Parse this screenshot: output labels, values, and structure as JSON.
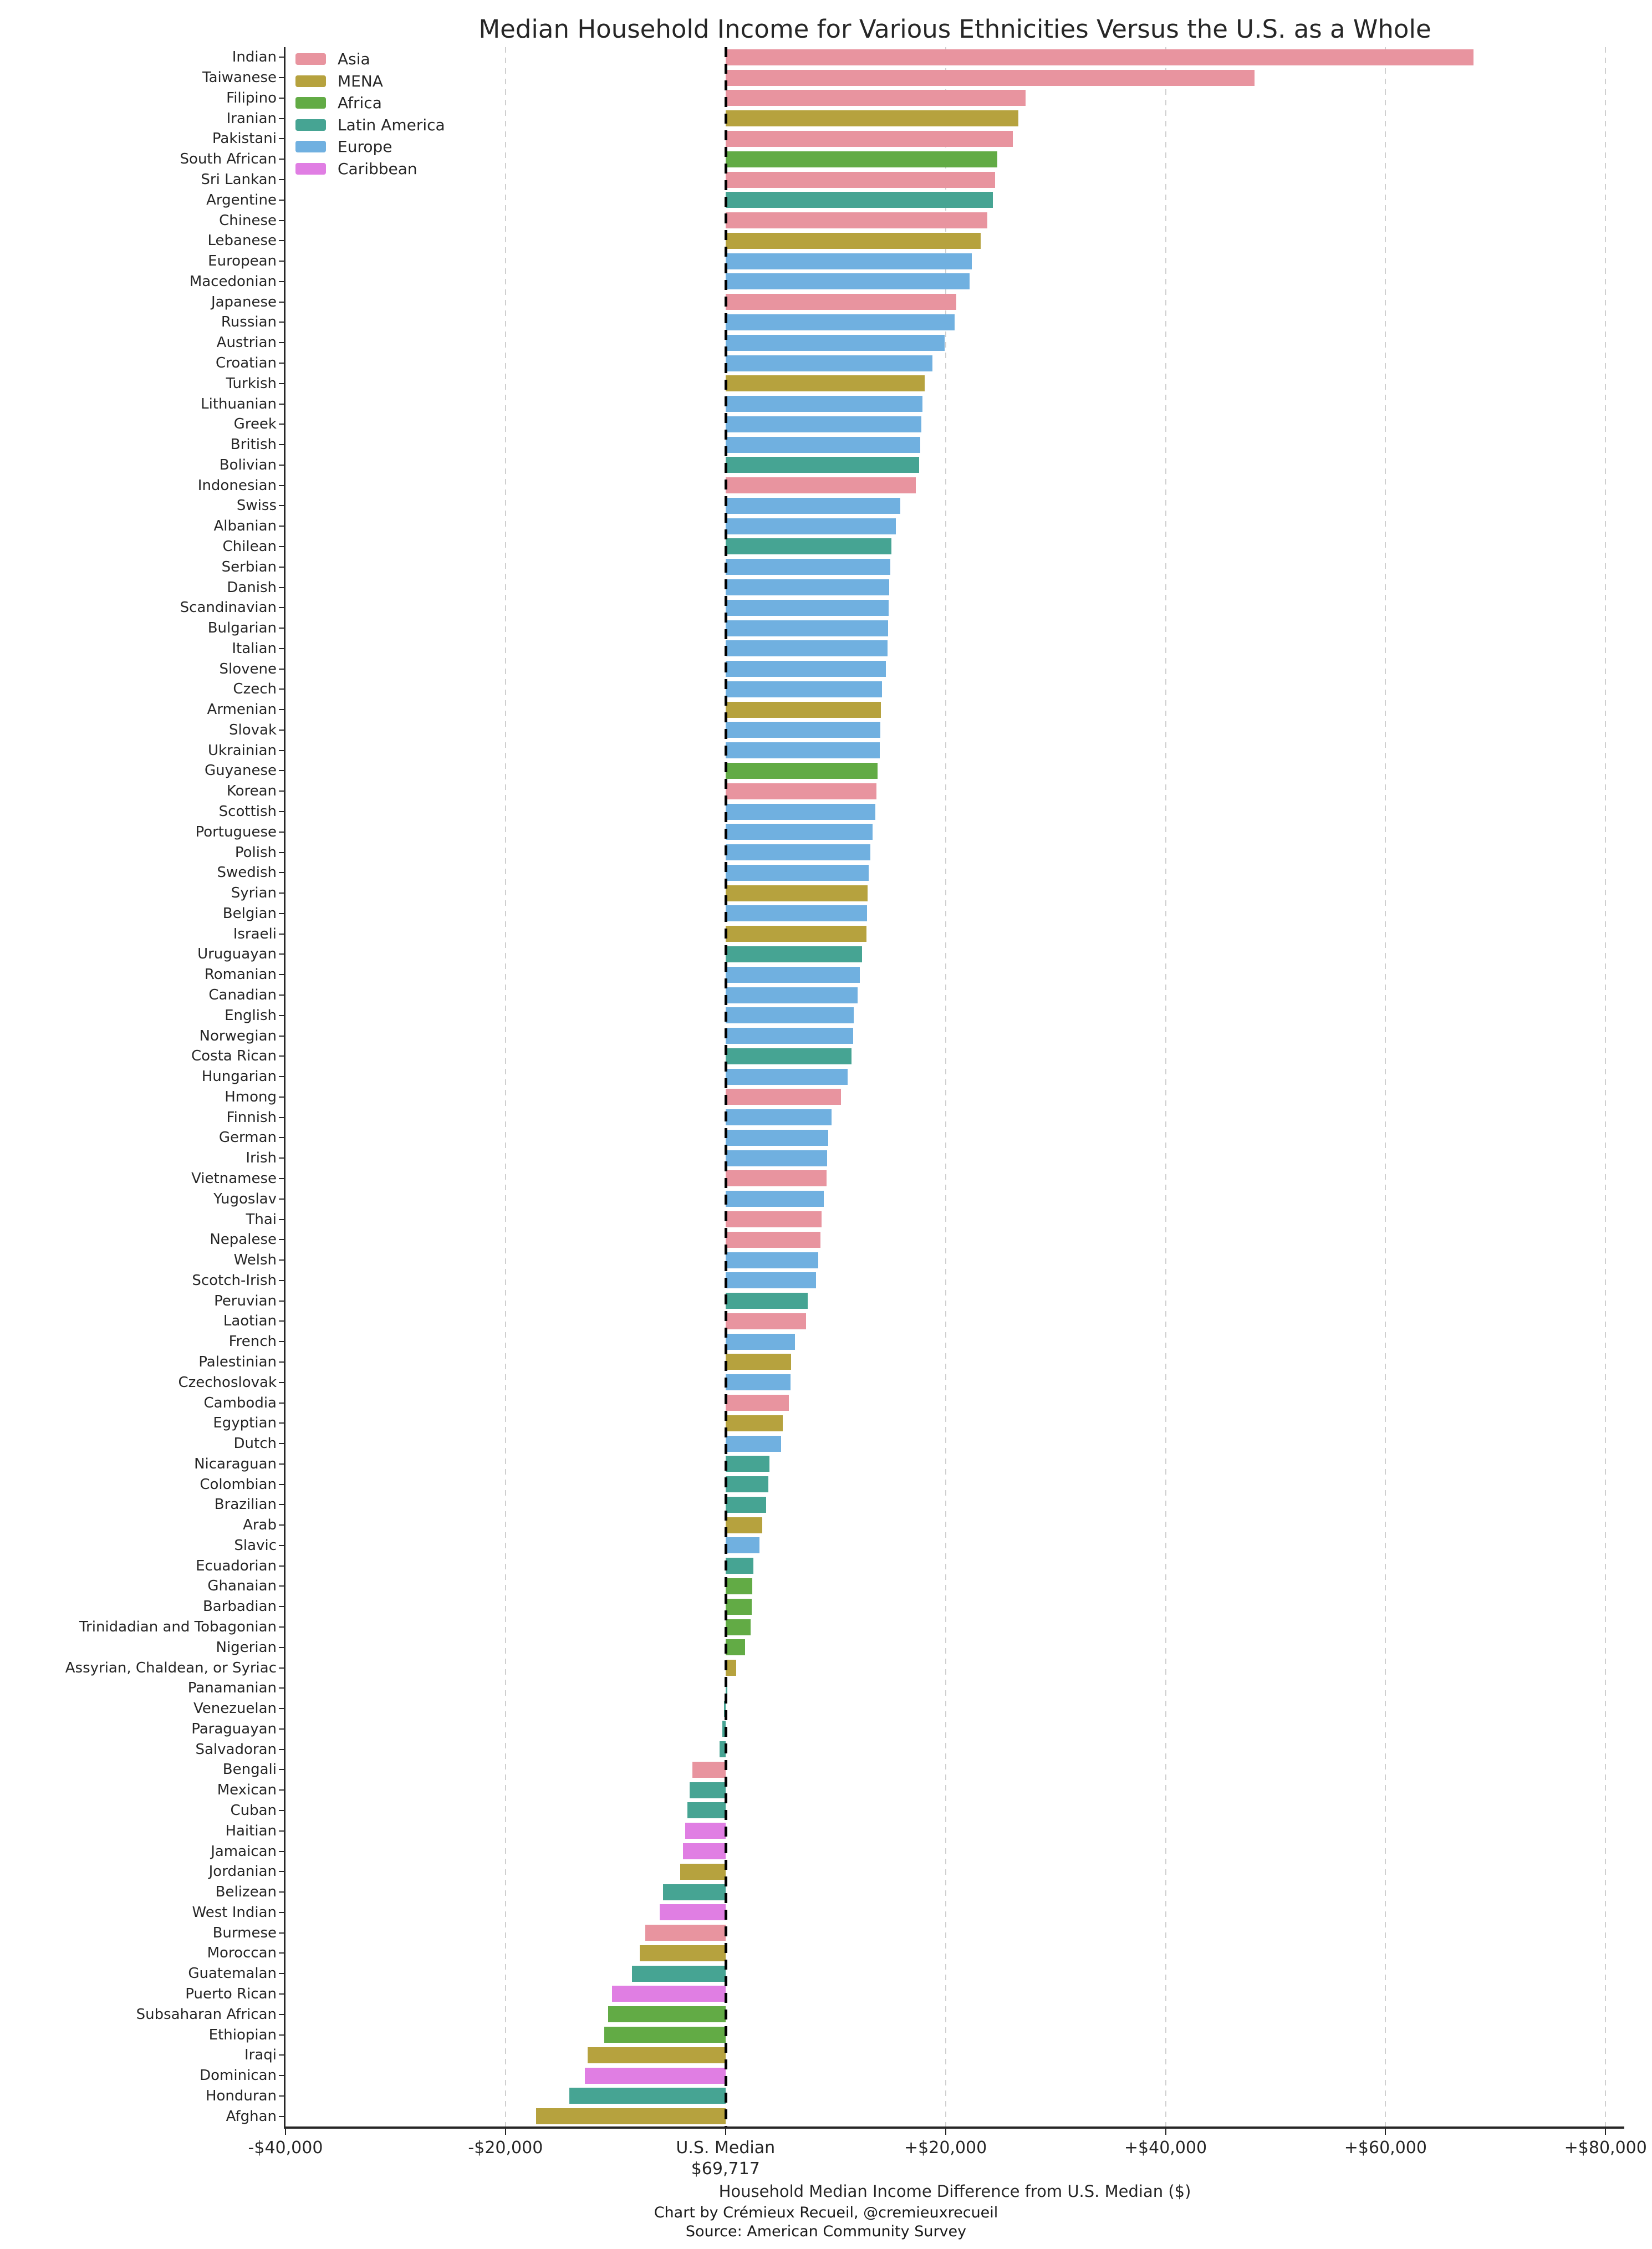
{
  "title": "Median Household Income for Various Ethnicities Versus the U.S. as a Whole",
  "footer": {
    "credit": "Chart by Crémieux Recueil, @cremieuxrecueil",
    "source": "Source: American Community Survey"
  },
  "axis": {
    "xlabel": "Household Median Income Difference from U.S. Median ($)",
    "xlim": [
      -40000,
      81700
    ],
    "xticks": [
      {
        "value": -40000,
        "label": "-$40,000"
      },
      {
        "value": -20000,
        "label": "-$20,000"
      },
      {
        "value": 0,
        "label": "U.S. Median\n$69,717"
      },
      {
        "value": 20000,
        "label": "+$20,000"
      },
      {
        "value": 40000,
        "label": "+$40,000"
      },
      {
        "value": 60000,
        "label": "+$60,000"
      },
      {
        "value": 80000,
        "label": "+$80,000"
      }
    ]
  },
  "legend": {
    "items": [
      {
        "label": "Asia",
        "color": "#e8949f"
      },
      {
        "label": "MENA",
        "color": "#b6a23e"
      },
      {
        "label": "Africa",
        "color": "#62ab45"
      },
      {
        "label": "Latin America",
        "color": "#46a493"
      },
      {
        "label": "Europe",
        "color": "#70b0e0"
      },
      {
        "label": "Caribbean",
        "color": "#e07ee3"
      }
    ]
  },
  "chart_data": {
    "type": "bar",
    "orientation": "horizontal",
    "title": "Median Household Income for Various Ethnicities Versus the U.S. as a Whole",
    "xlabel": "Household Median Income Difference from U.S. Median ($)",
    "xlim": [
      -40000,
      81700
    ],
    "grid": "vertical dashed every $20,000",
    "legend_position": "upper left",
    "baseline": {
      "label": "U.S. Median",
      "value_dollars": 69717
    },
    "region_colors": {
      "Asia": "#e8949f",
      "MENA": "#b6a23e",
      "Africa": "#62ab45",
      "Latin America": "#46a493",
      "Europe": "#70b0e0",
      "Caribbean": "#e07ee3"
    },
    "series": [
      {
        "name": "Indian",
        "region": "Asia",
        "value": 68000
      },
      {
        "name": "Taiwanese",
        "region": "Asia",
        "value": 48100
      },
      {
        "name": "Filipino",
        "region": "Asia",
        "value": 27300
      },
      {
        "name": "Iranian",
        "region": "MENA",
        "value": 26600
      },
      {
        "name": "Pakistani",
        "region": "Asia",
        "value": 26100
      },
      {
        "name": "South African",
        "region": "Africa",
        "value": 24700
      },
      {
        "name": "Sri Lankan",
        "region": "Asia",
        "value": 24500
      },
      {
        "name": "Argentine",
        "region": "Latin America",
        "value": 24300
      },
      {
        "name": "Chinese",
        "region": "Asia",
        "value": 23800
      },
      {
        "name": "Lebanese",
        "region": "MENA",
        "value": 23200
      },
      {
        "name": "European",
        "region": "Europe",
        "value": 22400
      },
      {
        "name": "Macedonian",
        "region": "Europe",
        "value": 22200
      },
      {
        "name": "Japanese",
        "region": "Asia",
        "value": 21000
      },
      {
        "name": "Russian",
        "region": "Europe",
        "value": 20800
      },
      {
        "name": "Austrian",
        "region": "Europe",
        "value": 19900
      },
      {
        "name": "Croatian",
        "region": "Europe",
        "value": 18800
      },
      {
        "name": "Turkish",
        "region": "MENA",
        "value": 18100
      },
      {
        "name": "Lithuanian",
        "region": "Europe",
        "value": 17900
      },
      {
        "name": "Greek",
        "region": "Europe",
        "value": 17800
      },
      {
        "name": "British",
        "region": "Europe",
        "value": 17700
      },
      {
        "name": "Bolivian",
        "region": "Latin America",
        "value": 17600
      },
      {
        "name": "Indonesian",
        "region": "Asia",
        "value": 17300
      },
      {
        "name": "Swiss",
        "region": "Europe",
        "value": 15900
      },
      {
        "name": "Albanian",
        "region": "Europe",
        "value": 15500
      },
      {
        "name": "Chilean",
        "region": "Latin America",
        "value": 15100
      },
      {
        "name": "Serbian",
        "region": "Europe",
        "value": 15000
      },
      {
        "name": "Danish",
        "region": "Europe",
        "value": 14900
      },
      {
        "name": "Scandinavian",
        "region": "Europe",
        "value": 14850
      },
      {
        "name": "Bulgarian",
        "region": "Europe",
        "value": 14800
      },
      {
        "name": "Italian",
        "region": "Europe",
        "value": 14750
      },
      {
        "name": "Slovene",
        "region": "Europe",
        "value": 14600
      },
      {
        "name": "Czech",
        "region": "Europe",
        "value": 14200
      },
      {
        "name": "Armenian",
        "region": "MENA",
        "value": 14100
      },
      {
        "name": "Slovak",
        "region": "Europe",
        "value": 14050
      },
      {
        "name": "Ukrainian",
        "region": "Europe",
        "value": 14000
      },
      {
        "name": "Guyanese",
        "region": "Africa",
        "value": 13800
      },
      {
        "name": "Korean",
        "region": "Asia",
        "value": 13700
      },
      {
        "name": "Scottish",
        "region": "Europe",
        "value": 13600
      },
      {
        "name": "Portuguese",
        "region": "Europe",
        "value": 13350
      },
      {
        "name": "Polish",
        "region": "Europe",
        "value": 13150
      },
      {
        "name": "Swedish",
        "region": "Europe",
        "value": 13000
      },
      {
        "name": "Syrian",
        "region": "MENA",
        "value": 12900
      },
      {
        "name": "Belgian",
        "region": "Europe",
        "value": 12850
      },
      {
        "name": "Israeli",
        "region": "MENA",
        "value": 12800
      },
      {
        "name": "Uruguayan",
        "region": "Latin America",
        "value": 12400
      },
      {
        "name": "Romanian",
        "region": "Europe",
        "value": 12200
      },
      {
        "name": "Canadian",
        "region": "Europe",
        "value": 12000
      },
      {
        "name": "English",
        "region": "Europe",
        "value": 11650
      },
      {
        "name": "Norwegian",
        "region": "Europe",
        "value": 11600
      },
      {
        "name": "Costa Rican",
        "region": "Latin America",
        "value": 11450
      },
      {
        "name": "Hungarian",
        "region": "Europe",
        "value": 11100
      },
      {
        "name": "Hmong",
        "region": "Asia",
        "value": 10500
      },
      {
        "name": "Finnish",
        "region": "Europe",
        "value": 9650
      },
      {
        "name": "German",
        "region": "Europe",
        "value": 9350
      },
      {
        "name": "Irish",
        "region": "Europe",
        "value": 9250
      },
      {
        "name": "Vietnamese",
        "region": "Asia",
        "value": 9200
      },
      {
        "name": "Yugoslav",
        "region": "Europe",
        "value": 8950
      },
      {
        "name": "Thai",
        "region": "Asia",
        "value": 8750
      },
      {
        "name": "Nepalese",
        "region": "Asia",
        "value": 8650
      },
      {
        "name": "Welsh",
        "region": "Europe",
        "value": 8450
      },
      {
        "name": "Scotch-Irish",
        "region": "Europe",
        "value": 8250
      },
      {
        "name": "Peruvian",
        "region": "Latin America",
        "value": 7450
      },
      {
        "name": "Laotian",
        "region": "Asia",
        "value": 7300
      },
      {
        "name": "French",
        "region": "Europe",
        "value": 6300
      },
      {
        "name": "Palestinian",
        "region": "MENA",
        "value": 5950
      },
      {
        "name": "Czechoslovak",
        "region": "Europe",
        "value": 5900
      },
      {
        "name": "Cambodia",
        "region": "Asia",
        "value": 5750
      },
      {
        "name": "Egyptian",
        "region": "MENA",
        "value": 5200
      },
      {
        "name": "Dutch",
        "region": "Europe",
        "value": 5050
      },
      {
        "name": "Nicaraguan",
        "region": "Latin America",
        "value": 4000
      },
      {
        "name": "Colombian",
        "region": "Latin America",
        "value": 3900
      },
      {
        "name": "Brazilian",
        "region": "Latin America",
        "value": 3700
      },
      {
        "name": "Arab",
        "region": "MENA",
        "value": 3350
      },
      {
        "name": "Slavic",
        "region": "Europe",
        "value": 3100
      },
      {
        "name": "Ecuadorian",
        "region": "Latin America",
        "value": 2550
      },
      {
        "name": "Ghanaian",
        "region": "Africa",
        "value": 2450
      },
      {
        "name": "Barbadian",
        "region": "Africa",
        "value": 2400
      },
      {
        "name": "Trinidadian and Tobagonian",
        "region": "Africa",
        "value": 2300
      },
      {
        "name": "Nigerian",
        "region": "Africa",
        "value": 1800
      },
      {
        "name": "Assyrian, Chaldean, or Syriac",
        "region": "MENA",
        "value": 950
      },
      {
        "name": "Panamanian",
        "region": "Latin America",
        "value": 150
      },
      {
        "name": "Venezuelan",
        "region": "Latin America",
        "value": -150
      },
      {
        "name": "Paraguayan",
        "region": "Latin America",
        "value": -300
      },
      {
        "name": "Salvadoran",
        "region": "Latin America",
        "value": -550
      },
      {
        "name": "Bengali",
        "region": "Asia",
        "value": -3000
      },
      {
        "name": "Mexican",
        "region": "Latin America",
        "value": -3250
      },
      {
        "name": "Cuban",
        "region": "Latin America",
        "value": -3450
      },
      {
        "name": "Haitian",
        "region": "Caribbean",
        "value": -3650
      },
      {
        "name": "Jamaican",
        "region": "Caribbean",
        "value": -3850
      },
      {
        "name": "Jordanian",
        "region": "MENA",
        "value": -4100
      },
      {
        "name": "Belizean",
        "region": "Latin America",
        "value": -5700
      },
      {
        "name": "West Indian",
        "region": "Caribbean",
        "value": -6000
      },
      {
        "name": "Burmese",
        "region": "Asia",
        "value": -7300
      },
      {
        "name": "Moroccan",
        "region": "MENA",
        "value": -7800
      },
      {
        "name": "Guatemalan",
        "region": "Latin America",
        "value": -8500
      },
      {
        "name": "Puerto Rican",
        "region": "Caribbean",
        "value": -10300
      },
      {
        "name": "Subsaharan African",
        "region": "Africa",
        "value": -10650
      },
      {
        "name": "Ethiopian",
        "region": "Africa",
        "value": -11000
      },
      {
        "name": "Iraqi",
        "region": "MENA",
        "value": -12550
      },
      {
        "name": "Dominican",
        "region": "Caribbean",
        "value": -12800
      },
      {
        "name": "Honduran",
        "region": "Latin America",
        "value": -14200
      },
      {
        "name": "Afghan",
        "region": "MENA",
        "value": -17200
      }
    ]
  }
}
